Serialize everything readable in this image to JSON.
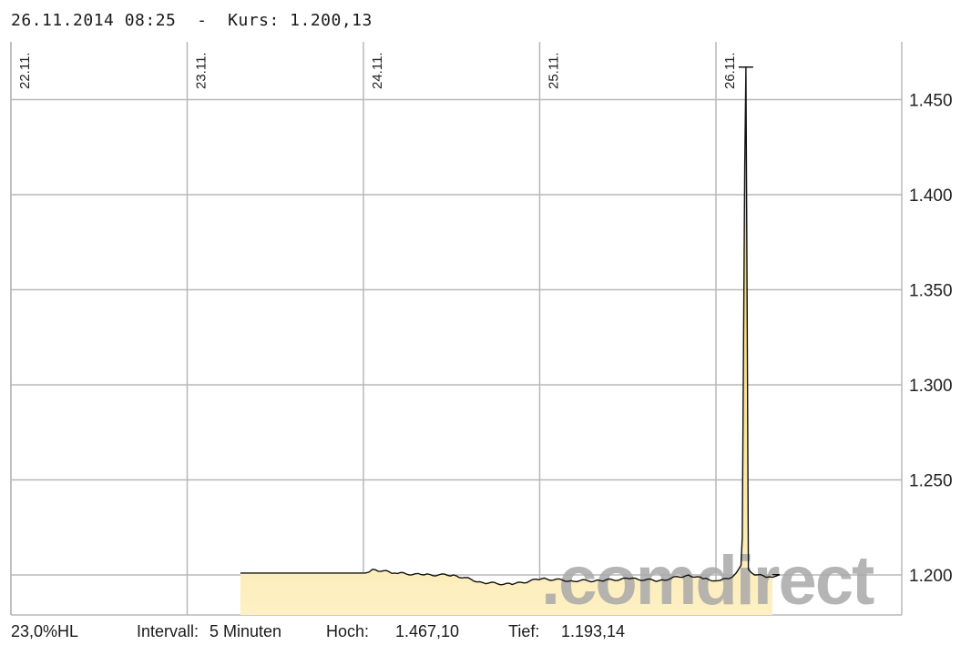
{
  "header": {
    "datetime": "26.11.2014 08:25",
    "separator": "-",
    "kurs_label": "Kurs:",
    "kurs_value": "1.200,13"
  },
  "footer": {
    "hl": "23,0%HL",
    "interval_label": "Intervall:",
    "interval_value": "5 Minuten",
    "high_label": "Hoch:",
    "high_value": "1.467,10",
    "low_label": "Tief:",
    "low_value": "1.193,14"
  },
  "watermark": ".comdirect",
  "colors": {
    "grid": "#b8b8b8",
    "line": "#111111",
    "fill_top": "#f6d04a",
    "fill_bottom": "#fdf0c4",
    "watermark": "#a9a9a9"
  },
  "chart_data": {
    "type": "area",
    "x_tick_labels": [
      "22.11.",
      "23.11.",
      "24.11.",
      "25.11.",
      "26.11."
    ],
    "y_tick_labels": [
      "1.450",
      "1.400",
      "1.350",
      "1.300",
      "1.250",
      "1.200"
    ],
    "y_ticks": [
      1450,
      1400,
      1350,
      1300,
      1250,
      1200
    ],
    "ylim": [
      1180,
      1480
    ],
    "xlim": [
      "2014-11-22",
      "2014-11-26 12:00"
    ],
    "grid": true,
    "legend": "none",
    "series": [
      {
        "values": [
          [
            "2014-11-23 07:00",
            1201
          ],
          [
            "2014-11-24 00:00",
            1201
          ],
          [
            "2014-11-24 01:00",
            1203
          ],
          [
            "2014-11-24 04:00",
            1201
          ],
          [
            "2014-11-24 08:00",
            1200
          ],
          [
            "2014-11-24 12:00",
            1200
          ],
          [
            "2014-11-24 16:00",
            1196
          ],
          [
            "2014-11-24 20:00",
            1195
          ],
          [
            "2014-11-25 00:00",
            1198
          ],
          [
            "2014-11-25 04:00",
            1197
          ],
          [
            "2014-11-25 08:00",
            1197
          ],
          [
            "2014-11-25 12:00",
            1198
          ],
          [
            "2014-11-25 16:00",
            1197
          ],
          [
            "2014-11-25 20:00",
            1200
          ],
          [
            "2014-11-25 22:00",
            1198
          ],
          [
            "2014-11-26 00:00",
            1197
          ],
          [
            "2014-11-26 01:30",
            1198
          ],
          [
            "2014-11-26 02:30",
            1201
          ],
          [
            "2014-11-26 03:10",
            1205
          ],
          [
            "2014-11-26 03:20",
            1220
          ],
          [
            "2014-11-26 03:30",
            1315
          ],
          [
            "2014-11-26 03:40",
            1415
          ],
          [
            "2014-11-26 03:50",
            1467.1
          ],
          [
            "2014-11-26 04:00",
            1335
          ],
          [
            "2014-11-26 04:10",
            1203
          ],
          [
            "2014-11-26 05:00",
            1200
          ],
          [
            "2014-11-26 07:00",
            1199
          ],
          [
            "2014-11-26 08:25",
            1200.13
          ]
        ]
      }
    ]
  }
}
